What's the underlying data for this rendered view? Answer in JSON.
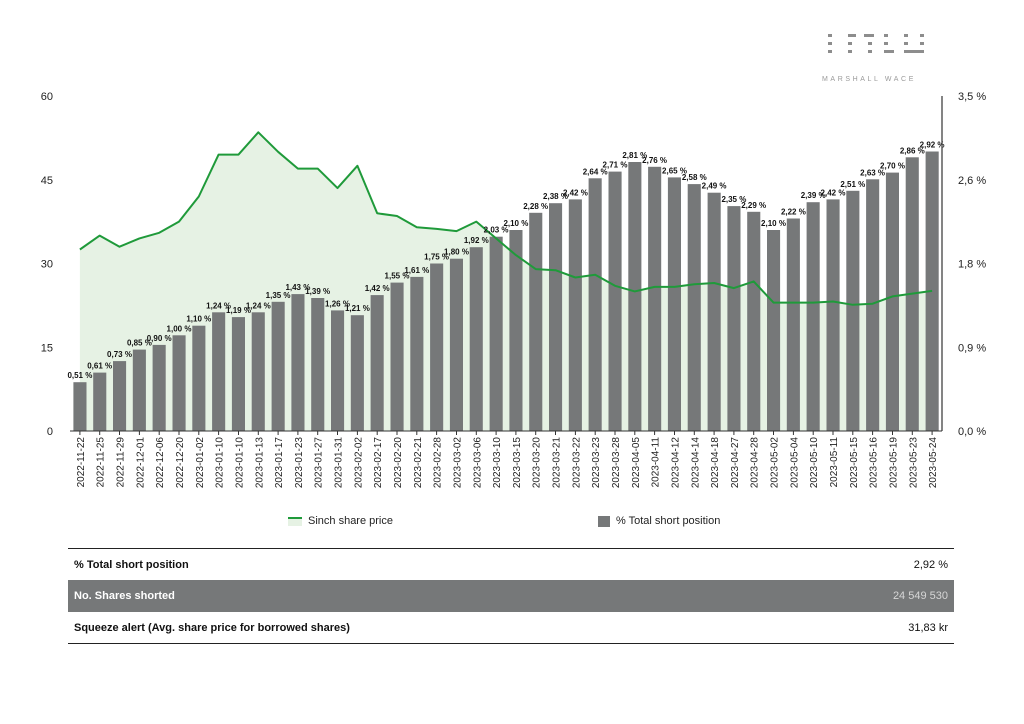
{
  "brand": {
    "name": "MARSHALL WACE"
  },
  "colors": {
    "bar": "#767879",
    "line": "#1f9a3a",
    "area": "#e6f2e4",
    "axis": "#333333"
  },
  "chart_data": {
    "type": "bar",
    "categories": [
      "2022-11-22",
      "2022-11-25",
      "2022-11-29",
      "2022-12-01",
      "2022-12-06",
      "2022-12-20",
      "2023-01-02",
      "2023-01-10",
      "2023-01-10",
      "2023-01-13",
      "2023-01-17",
      "2023-01-23",
      "2023-01-27",
      "2023-01-31",
      "2023-02-02",
      "2023-02-17",
      "2023-02-20",
      "2023-02-21",
      "2023-02-28",
      "2023-03-02",
      "2023-03-06",
      "2023-03-10",
      "2023-03-15",
      "2023-03-20",
      "2023-03-21",
      "2023-03-22",
      "2023-03-23",
      "2023-03-28",
      "2023-04-05",
      "2023-04-11",
      "2023-04-12",
      "2023-04-14",
      "2023-04-18",
      "2023-04-27",
      "2023-04-28",
      "2023-05-02",
      "2023-05-04",
      "2023-05-10",
      "2023-05-11",
      "2023-05-15",
      "2023-05-16",
      "2023-05-19",
      "2023-05-23",
      "2023-05-24"
    ],
    "series": [
      {
        "name": "% Total short position",
        "type": "bar",
        "axis": "right",
        "values": [
          0.51,
          0.61,
          0.73,
          0.85,
          0.9,
          1.0,
          1.1,
          1.24,
          1.19,
          1.24,
          1.35,
          1.43,
          1.39,
          1.26,
          1.21,
          1.42,
          1.55,
          1.61,
          1.75,
          1.8,
          1.92,
          2.03,
          2.1,
          2.28,
          2.38,
          2.42,
          2.64,
          2.71,
          2.81,
          2.76,
          2.65,
          2.58,
          2.49,
          2.35,
          2.29,
          2.1,
          2.22,
          2.39,
          2.42,
          2.51,
          2.63,
          2.7,
          2.86,
          2.92
        ],
        "labels": [
          "0,51 %",
          "0,61 %",
          "0,73 %",
          "0,85 %",
          "0,90 %",
          "1,00 %",
          "1,10 %",
          "1,24 %",
          "1,19 %",
          "1,24 %",
          "1,35 %",
          "1,43 %",
          "1,39 %",
          "1,26 %",
          "1,21 %",
          "1,42 %",
          "1,55 %",
          "1,61 %",
          "1,75 %",
          "1,80 %",
          "1,92 %",
          "2,03 %",
          "2,10 %",
          "2,28 %",
          "2,38 %",
          "2,42 %",
          "2,64 %",
          "2,71 %",
          "2,81 %",
          "2,76 %",
          "2,65 %",
          "2,58 %",
          "2,49 %",
          "2,35 %",
          "2,29 %",
          "2,10 %",
          "2,22 %",
          "2,39 %",
          "2,42 %",
          "2,51 %",
          "2,63 %",
          "2,70 %",
          "2,86 %",
          "2,92 %"
        ]
      },
      {
        "name": "Sinch share price",
        "type": "area-line",
        "axis": "left",
        "values": [
          32.5,
          35,
          33,
          34.5,
          35.5,
          37.5,
          42,
          49.5,
          49.5,
          53.5,
          50,
          47,
          47,
          43.5,
          47.5,
          39,
          38.5,
          36.5,
          36.2,
          35.8,
          37.5,
          34.5,
          31.5,
          29,
          28.8,
          27.5,
          28,
          26,
          25,
          25.8,
          25.8,
          26.3,
          26.5,
          25.6,
          26.8,
          23,
          23,
          23,
          23.2,
          22.6,
          22.8,
          24.1,
          24.6,
          25.1
        ]
      }
    ],
    "y_left": {
      "min": 0,
      "max": 60,
      "ticks": [
        "0",
        "15",
        "30",
        "45",
        "60"
      ],
      "tick_values": [
        0,
        15,
        30,
        45,
        60
      ]
    },
    "y_right": {
      "min": 0,
      "max": 3.5,
      "ticks": [
        "0,0 %",
        "0,9 %",
        "1,8 %",
        "2,6 %",
        "3,5 %"
      ],
      "tick_values": [
        0,
        0.875,
        1.75,
        2.625,
        3.5
      ]
    },
    "legend": {
      "placement": "bottom"
    },
    "grid": false
  },
  "summary": {
    "rows": [
      {
        "label": "% Total short position",
        "value": "2,92 %"
      },
      {
        "label": "No. Shares shorted",
        "value": "24 549 530"
      },
      {
        "label": "Squeeze alert (Avg. share price for borrowed shares)",
        "value": "31,83 kr"
      }
    ]
  }
}
